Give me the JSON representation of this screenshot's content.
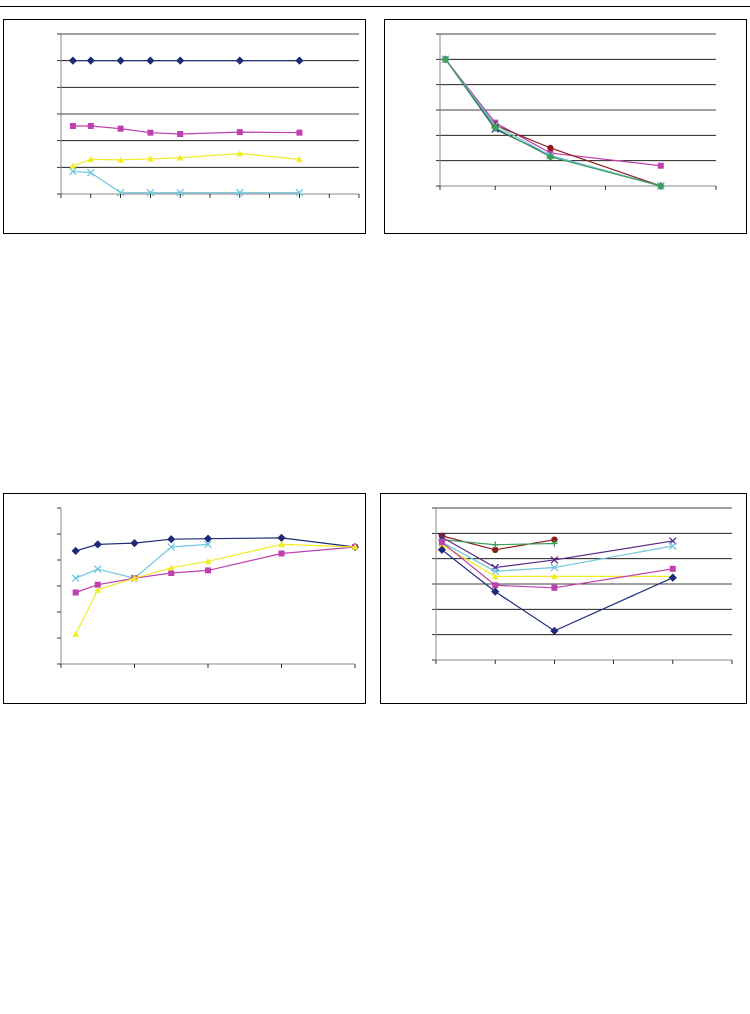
{
  "chart_data": [
    {
      "type": "line",
      "ylim": [
        0,
        6
      ],
      "xlim": [
        0,
        10
      ],
      "grid": true,
      "x_ticks": [
        0,
        1,
        2,
        3,
        4,
        5,
        6,
        7,
        8,
        9,
        10
      ],
      "series": [
        {
          "x": [
            0.4,
            1,
            2,
            3,
            4,
            6,
            8
          ],
          "values": [
            5.0,
            5.0,
            5.0,
            5.0,
            5.0,
            5.0,
            5.0
          ],
          "color": "#1f2a78",
          "marker": "diamond"
        },
        {
          "x": [
            0.4,
            1,
            2,
            3,
            4,
            6,
            8
          ],
          "values": [
            2.55,
            2.55,
            2.45,
            2.3,
            2.25,
            2.32,
            2.3
          ],
          "color": "#bf3fae",
          "marker": "square"
        },
        {
          "x": [
            0.4,
            1,
            2,
            3,
            4,
            6,
            8
          ],
          "values": [
            1.05,
            1.3,
            1.28,
            1.32,
            1.36,
            1.52,
            1.3
          ],
          "color": "#f1ec24",
          "marker": "triangle"
        },
        {
          "x": [
            0.4,
            1,
            2,
            3,
            4,
            6,
            8
          ],
          "values": [
            0.85,
            0.8,
            0.05,
            0.05,
            0.05,
            0.05,
            0.05
          ],
          "color": "#6fc6de",
          "marker": "x"
        }
      ]
    },
    {
      "type": "line",
      "ylim": [
        0,
        6
      ],
      "grid": true,
      "categories": [
        "",
        "",
        "",
        ""
      ],
      "x": [
        0.1,
        1,
        2,
        4
      ],
      "xlim": [
        0,
        5
      ],
      "x_ticks": [
        0,
        1,
        2,
        3,
        4,
        5
      ],
      "series": [
        {
          "values": [
            5.0,
            2.25,
            1.2,
            0.0
          ],
          "color": "#2c2e7e",
          "marker": "x"
        },
        {
          "values": [
            5.0,
            2.5,
            1.3,
            0.8
          ],
          "color": "#bf3fae",
          "marker": "square"
        },
        {
          "values": [
            5.0,
            2.4,
            1.5,
            0.0
          ],
          "color": "#8c1c1c",
          "marker": "circle"
        },
        {
          "values": [
            5.0,
            2.4,
            1.2,
            0.0
          ],
          "color": "#6fc6de",
          "marker": "x"
        },
        {
          "values": [
            5.0,
            2.3,
            1.15,
            0.0
          ],
          "color": "#3c9f5a",
          "marker": "diamond"
        }
      ]
    },
    {
      "type": "line",
      "ylim": [
        0,
        6
      ],
      "xlim": [
        0,
        4
      ],
      "grid": false,
      "x_ticks": [
        0,
        1,
        2,
        3,
        4
      ],
      "series": [
        {
          "x": [
            0.2,
            0.5,
            1,
            1.5,
            2,
            3,
            4
          ],
          "values": [
            4.35,
            4.6,
            4.65,
            4.8,
            4.82,
            4.85,
            4.5
          ],
          "color": "#1f2a78",
          "marker": "diamond"
        },
        {
          "x": [
            0.2,
            0.5,
            1,
            1.5,
            2
          ],
          "values": [
            3.3,
            3.65,
            3.3,
            4.5,
            4.6
          ],
          "color": "#6fc6de",
          "marker": "x"
        },
        {
          "x": [
            0.2,
            0.5,
            1,
            1.5,
            2,
            3,
            4
          ],
          "values": [
            2.75,
            3.05,
            3.3,
            3.5,
            3.6,
            4.25,
            4.5
          ],
          "color": "#bf3fae",
          "marker": "square"
        },
        {
          "x": [
            0.2,
            0.5,
            1,
            1.5,
            2,
            3,
            4
          ],
          "values": [
            1.15,
            2.85,
            3.3,
            3.7,
            3.95,
            4.6,
            4.5
          ],
          "color": "#f1ec24",
          "marker": "triangle"
        }
      ]
    },
    {
      "type": "line",
      "ylim": [
        0,
        6
      ],
      "grid": true,
      "x": [
        0.1,
        1,
        2,
        4
      ],
      "xlim": [
        0,
        5
      ],
      "x_ticks": [
        0,
        1,
        2,
        3,
        4,
        5
      ],
      "series": [
        {
          "x": [
            0.1,
            1,
            2
          ],
          "values": [
            4.9,
            4.35,
            4.75
          ],
          "color": "#8c1c1c",
          "marker": "circle"
        },
        {
          "x": [
            0.1,
            1,
            2
          ],
          "values": [
            4.75,
            4.55,
            4.6
          ],
          "color": "#3c9f5a",
          "marker": "plus"
        },
        {
          "x": [
            0.1,
            1,
            2,
            4
          ],
          "values": [
            4.85,
            3.65,
            3.95,
            4.7
          ],
          "color": "#5b2a86",
          "marker": "x"
        },
        {
          "x": [
            0.1,
            1,
            2,
            4
          ],
          "values": [
            4.65,
            3.5,
            3.65,
            4.5
          ],
          "color": "#6fc6de",
          "marker": "x"
        },
        {
          "x": [
            0.1,
            1,
            2,
            4
          ],
          "values": [
            4.55,
            3.3,
            3.3,
            3.3
          ],
          "color": "#f1ec24",
          "marker": "triangle"
        },
        {
          "x": [
            0.1,
            1,
            2,
            4
          ],
          "values": [
            4.65,
            2.95,
            2.85,
            3.6
          ],
          "color": "#bf3fae",
          "marker": "square"
        },
        {
          "x": [
            0.1,
            1,
            2,
            4
          ],
          "values": [
            4.35,
            2.7,
            1.15,
            3.25
          ],
          "color": "#1f2a78",
          "marker": "diamond"
        }
      ]
    }
  ]
}
